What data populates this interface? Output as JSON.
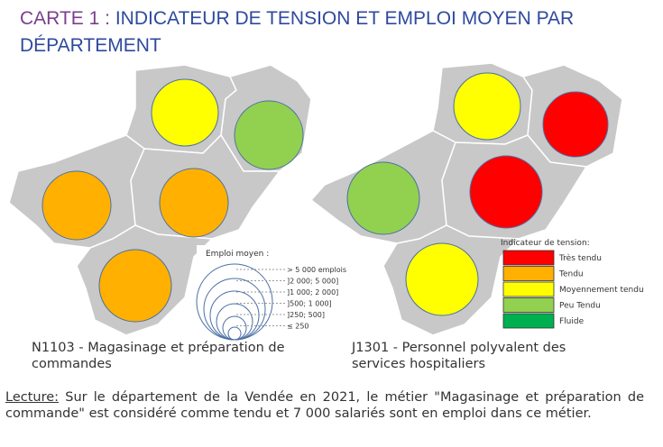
{
  "title": {
    "prefix": "CARTE 1 :",
    "text": "INDICATEUR DE TENSION ET EMPLOI MOYEN  PAR DÉPARTEMENT"
  },
  "maps": [
    {
      "caption": "N1103 - Magasinage et préparation de commandes"
    },
    {
      "caption": "J1301 - Personnel polyvalent des services hospitaliers"
    }
  ],
  "size_legend": {
    "title": "Emploi moyen :",
    "items": [
      "> 5 000 emplois",
      "]2 000; 5 000]",
      "]1 000; 2 000]",
      "]500; 1 000]",
      "]250; 500]",
      "≤ 250"
    ]
  },
  "tension_legend": {
    "title": "Indicateur de tension:",
    "items": [
      {
        "label": "Très tendu",
        "color": "#ff0000"
      },
      {
        "label": "Tendu",
        "color": "#ffb000"
      },
      {
        "label": "Moyennement tendu",
        "color": "#ffff00"
      },
      {
        "label": "Peu Tendu",
        "color": "#92d050"
      },
      {
        "label": "Fluide",
        "color": "#00b050"
      }
    ]
  },
  "note": {
    "label": "Lecture:",
    "text": "Sur le département de la Vendée en 2021, le métier \"Magasinage et préparation de commande\" est considéré comme tendu et 7 000 salariés sont en emploi dans ce métier."
  }
}
